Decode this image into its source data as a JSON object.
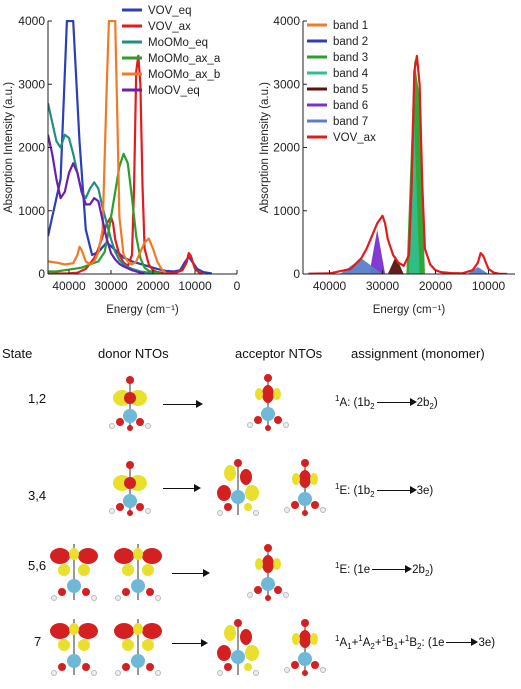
{
  "chart_data": [
    {
      "type": "line",
      "ylabel": "Absorption Intensity (a.u.)",
      "xlabel": "Energy (cm⁻¹)",
      "xlim": [
        45000,
        0
      ],
      "ylim": [
        0,
        4000
      ],
      "xticks": [
        "40000",
        "30000",
        "20000",
        "10000",
        "0"
      ],
      "yticks": [
        "0",
        "1000",
        "2000",
        "3000",
        "4000"
      ],
      "legend_position": "top-right",
      "series": [
        {
          "name": "VOV_eq",
          "color": "#2a3fb8",
          "x": [
            45000,
            42000,
            40500,
            39000,
            37500,
            36000,
            34500,
            33000,
            31000,
            29000,
            27000,
            25000,
            23000,
            21000,
            19000,
            17000,
            15000,
            13500,
            12500,
            11500,
            10500,
            9500,
            8000,
            6000
          ],
          "values": [
            600,
            1500,
            4000,
            4000,
            2100,
            700,
            300,
            350,
            500,
            380,
            260,
            200,
            160,
            120,
            80,
            50,
            40,
            60,
            180,
            270,
            180,
            80,
            30,
            10
          ]
        },
        {
          "name": "VOV_ax",
          "color": "#e41a1c",
          "x": [
            45000,
            42000,
            40000,
            38000,
            36000,
            34000,
            33000,
            32000,
            31000,
            30000,
            29500,
            29000,
            28000,
            27000,
            26000,
            25000,
            24500,
            24000,
            23500,
            23000,
            22500,
            22000,
            21000,
            20000,
            19000,
            17000,
            15000,
            13000,
            12000,
            11500,
            11000,
            10500,
            10000,
            9000,
            8000
          ],
          "values": [
            5,
            8,
            10,
            20,
            80,
            250,
            400,
            600,
            800,
            900,
            800,
            550,
            300,
            180,
            130,
            300,
            1400,
            3200,
            3450,
            3000,
            1400,
            400,
            150,
            60,
            30,
            15,
            10,
            60,
            180,
            330,
            290,
            180,
            80,
            20,
            5
          ]
        },
        {
          "name": "MoOMo_eq",
          "color": "#1f8f85",
          "x": [
            45000,
            44000,
            43000,
            42000,
            41000,
            40000,
            39000,
            38000,
            37000,
            36000,
            35000,
            34000,
            33000,
            32000,
            31000,
            30000,
            29000,
            28000,
            27000,
            26000,
            25000,
            24000,
            23000,
            22000,
            21000,
            20000
          ],
          "values": [
            2700,
            2400,
            2100,
            2000,
            2200,
            2150,
            1900,
            1600,
            1300,
            1200,
            1350,
            1450,
            1350,
            1050,
            800,
            550,
            350,
            220,
            150,
            110,
            80,
            60,
            40,
            30,
            20,
            10
          ]
        },
        {
          "name": "MoOMo_ax_a",
          "color": "#2aa02a",
          "x": [
            45000,
            43000,
            41000,
            39000,
            37000,
            35000,
            33000,
            31500,
            30500,
            30000,
            29000,
            28000,
            27000,
            26000,
            25000,
            24000,
            23000,
            22000,
            21000,
            20000,
            19000,
            18000
          ],
          "values": [
            40,
            40,
            60,
            80,
            100,
            150,
            200,
            350,
            700,
            900,
            1300,
            1700,
            1900,
            1750,
            1200,
            600,
            250,
            100,
            50,
            30,
            15,
            5
          ]
        },
        {
          "name": "MoOMo_ax_b",
          "color": "#f07a25",
          "x": [
            45000,
            43000,
            41000,
            39000,
            38000,
            37500,
            37000,
            36000,
            35000,
            34000,
            33000,
            32000,
            31000,
            30500,
            30000,
            29500,
            29000,
            28500,
            28000,
            27000,
            26000,
            25000,
            24000,
            23000,
            22000,
            21000,
            20000,
            19000,
            18000,
            17000
          ],
          "values": [
            200,
            180,
            150,
            170,
            300,
            430,
            380,
            200,
            150,
            200,
            350,
            700,
            3000,
            4000,
            4000,
            4000,
            4000,
            2500,
            900,
            300,
            200,
            150,
            200,
            350,
            500,
            560,
            400,
            200,
            80,
            20
          ]
        },
        {
          "name": "MoOV_eq",
          "color": "#6a1fb0",
          "x": [
            45000,
            44000,
            43000,
            42000,
            41000,
            40000,
            39000,
            38000,
            37000,
            36000,
            35000,
            34000,
            33000,
            32000,
            31000,
            30000,
            29000,
            28000,
            27000,
            26000,
            25000,
            24000,
            23000,
            22000
          ],
          "values": [
            2200,
            1900,
            1500,
            1200,
            1300,
            1600,
            1750,
            1600,
            1300,
            1100,
            1100,
            1200,
            1150,
            850,
            550,
            330,
            230,
            160,
            120,
            90,
            60,
            40,
            20,
            10
          ]
        }
      ]
    },
    {
      "type": "area",
      "ylabel": "Absorption Intensity (a.u.)",
      "xlabel": "Energy (cm⁻¹)",
      "xlim": [
        45000,
        5000
      ],
      "ylim": [
        0,
        4000
      ],
      "xticks": [
        "40000",
        "30000",
        "20000",
        "10000"
      ],
      "yticks": [
        "0",
        "1000",
        "2000",
        "3000",
        "4000"
      ],
      "legend_position": "top-left",
      "series": [
        {
          "name": "band 1",
          "color": "#f07a25",
          "x": [
            24500,
            23500,
            22500
          ],
          "values": [
            0,
            0,
            0
          ]
        },
        {
          "name": "band 2",
          "color": "#2a3fb8",
          "x": [
            32500,
            31000,
            29500
          ],
          "values": [
            0,
            0,
            0
          ]
        },
        {
          "name": "band 3",
          "color": "#2aa02a",
          "x": [
            25500,
            24000,
            23000,
            22000
          ],
          "values": [
            0,
            3400,
            2800,
            0
          ]
        },
        {
          "name": "band 4",
          "color": "#2fbf8a",
          "x": [
            25000,
            24000,
            23000
          ],
          "values": [
            0,
            2400,
            0
          ]
        },
        {
          "name": "band 5",
          "color": "#5a1212",
          "x": [
            29000,
            27500,
            26000
          ],
          "values": [
            0,
            280,
            0
          ]
        },
        {
          "name": "band 6",
          "color": "#7b2fd1",
          "x": [
            32500,
            31000,
            29500
          ],
          "values": [
            0,
            700,
            0
          ]
        },
        {
          "name": "band 7",
          "color": "#5a7fc8",
          "x": [
            38000,
            34000,
            30000,
            14000,
            12000,
            10000
          ],
          "values": [
            0,
            250,
            0,
            0,
            110,
            0
          ]
        },
        {
          "name": "VOV_ax",
          "color": "#e41a1c",
          "x": [
            44000,
            40000,
            36000,
            34000,
            33000,
            32000,
            31000,
            30000,
            29500,
            29000,
            28000,
            27000,
            26000,
            25000,
            24500,
            24000,
            23500,
            23000,
            22500,
            22000,
            21000,
            20000,
            19000,
            17000,
            15000,
            13000,
            12000,
            11500,
            11000,
            10500,
            10000,
            9000,
            8000,
            6500
          ],
          "values": [
            5,
            10,
            80,
            250,
            400,
            600,
            800,
            920,
            800,
            550,
            300,
            180,
            130,
            300,
            1400,
            3200,
            3450,
            3000,
            1400,
            400,
            150,
            60,
            30,
            15,
            10,
            60,
            180,
            330,
            290,
            180,
            80,
            20,
            5,
            0
          ]
        }
      ]
    }
  ],
  "table": {
    "headers": {
      "state": "State",
      "donor": "donor NTOs",
      "acceptor": "acceptor NTOs",
      "assignment": "assignment (monomer)"
    },
    "rows": [
      {
        "state": "1,2",
        "sup1": "1",
        "a1": "A: (1b",
        "sub1": "2",
        "a2": "",
        "a3": "2b",
        "sub2": "2",
        "a4": ")"
      },
      {
        "state": "3,4",
        "sup1": "1",
        "a1": "E: (1b",
        "sub1": "2",
        "a2": "",
        "a3": "3e)",
        "sub2": "",
        "a4": ""
      },
      {
        "state": "5,6",
        "sup1": "1",
        "a1": "E: (1e",
        "sub1": "",
        "a2": "",
        "a3": "2b",
        "sub2": "2",
        "a4": ")"
      },
      {
        "state": "7",
        "full": [
          "1",
          "A",
          "1",
          "+",
          "1",
          "A",
          "2",
          "+",
          "1",
          "B",
          "1",
          "+",
          "1",
          "B",
          "2",
          ": (1e",
          "3e)"
        ]
      }
    ]
  }
}
